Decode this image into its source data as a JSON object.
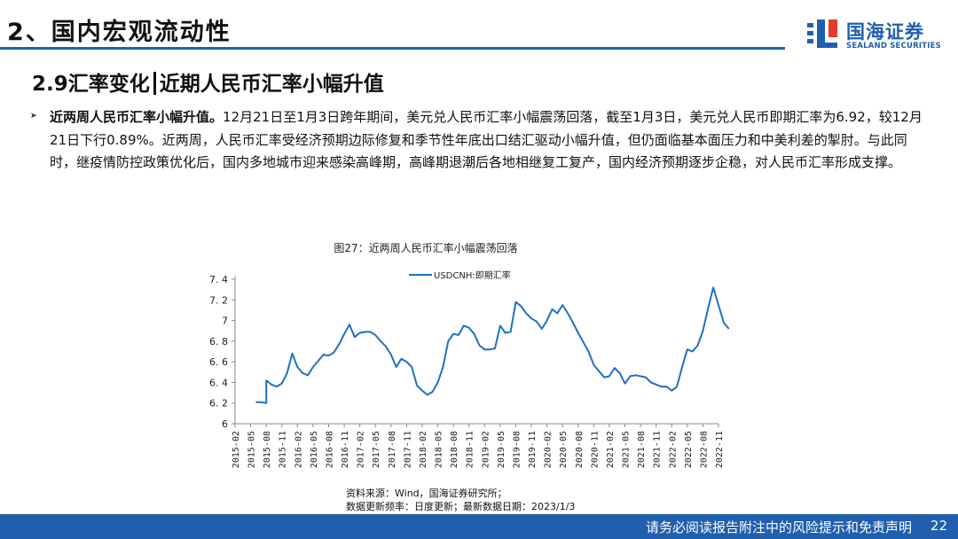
{
  "header": {
    "section_title": "2、国内宏观流动性",
    "logo_cn": "国海证券",
    "logo_en": "SEALAND SECURITIES"
  },
  "subheading": {
    "part1": "2.9汇率变化",
    "part2": "近期人民币汇率小幅升值"
  },
  "paragraph": {
    "lead": "近两周人民币汇率小幅升值。",
    "text": "12月21日至1月3日跨年期间，美元兑人民币汇率小幅震荡回落，截至1月3日，美元兑人民币即期汇率为6.92，较12月21日下行0.89%。近两周，人民币汇率受经济预期边际修复和季节性年底出口结汇驱动小幅升值，但仍面临基本面压力和中美利差的掣肘。与此同时，继疫情防控政策优化后，国内多地城市迎来感染高峰期，高峰期退潮后各地相继复工复产，国内经济预期逐步企稳，对人民币汇率形成支撑。"
  },
  "chart_data": {
    "type": "line",
    "title": "图27：近两周人民币汇率小幅震荡回落",
    "ylim": [
      6,
      7.4
    ],
    "yticks": [
      "6",
      "6.2",
      "6.4",
      "6.6",
      "6.8",
      "7",
      "7.2",
      "7.4"
    ],
    "x_ticks": [
      "2015-02",
      "2015-05",
      "2015-08",
      "2015-11",
      "2016-02",
      "2016-05",
      "2016-08",
      "2016-11",
      "2017-02",
      "2017-05",
      "2017-08",
      "2017-11",
      "2018-02",
      "2018-05",
      "2018-08",
      "2018-11",
      "2019-02",
      "2019-05",
      "2019-08",
      "2019-11",
      "2020-02",
      "2020-05",
      "2020-08",
      "2020-11",
      "2021-02",
      "2021-05",
      "2021-08",
      "2021-11",
      "2022-02",
      "2022-05",
      "2022-08",
      "2022-11"
    ],
    "x_start": "2015-02",
    "grid": false,
    "legend": "top",
    "series": [
      {
        "name": "USDCNH:即期汇率",
        "color": "#1f6fc4",
        "points": [
          [
            "2015-06",
            6.21
          ],
          [
            "2015-07",
            6.21
          ],
          [
            "2015-08",
            6.2
          ],
          [
            "2015-08",
            6.42
          ],
          [
            "2015-09",
            6.38
          ],
          [
            "2015-10",
            6.36
          ],
          [
            "2015-11",
            6.39
          ],
          [
            "2015-12",
            6.49
          ],
          [
            "2016-01",
            6.68
          ],
          [
            "2016-02",
            6.55
          ],
          [
            "2016-03",
            6.49
          ],
          [
            "2016-04",
            6.47
          ],
          [
            "2016-05",
            6.55
          ],
          [
            "2016-06",
            6.61
          ],
          [
            "2016-07",
            6.67
          ],
          [
            "2016-08",
            6.66
          ],
          [
            "2016-09",
            6.69
          ],
          [
            "2016-10",
            6.77
          ],
          [
            "2016-11",
            6.87
          ],
          [
            "2016-12",
            6.96
          ],
          [
            "2017-01",
            6.84
          ],
          [
            "2017-02",
            6.88
          ],
          [
            "2017-03",
            6.89
          ],
          [
            "2017-04",
            6.89
          ],
          [
            "2017-05",
            6.86
          ],
          [
            "2017-06",
            6.8
          ],
          [
            "2017-07",
            6.75
          ],
          [
            "2017-08",
            6.67
          ],
          [
            "2017-09",
            6.55
          ],
          [
            "2017-10",
            6.63
          ],
          [
            "2017-11",
            6.6
          ],
          [
            "2017-12",
            6.55
          ],
          [
            "2018-01",
            6.37
          ],
          [
            "2018-02",
            6.32
          ],
          [
            "2018-03",
            6.28
          ],
          [
            "2018-04",
            6.31
          ],
          [
            "2018-05",
            6.4
          ],
          [
            "2018-06",
            6.55
          ],
          [
            "2018-07",
            6.8
          ],
          [
            "2018-08",
            6.87
          ],
          [
            "2018-09",
            6.86
          ],
          [
            "2018-10",
            6.95
          ],
          [
            "2018-11",
            6.93
          ],
          [
            "2018-12",
            6.87
          ],
          [
            "2019-01",
            6.76
          ],
          [
            "2019-02",
            6.72
          ],
          [
            "2019-03",
            6.72
          ],
          [
            "2019-04",
            6.73
          ],
          [
            "2019-05",
            6.95
          ],
          [
            "2019-06",
            6.88
          ],
          [
            "2019-07",
            6.89
          ],
          [
            "2019-08",
            7.18
          ],
          [
            "2019-09",
            7.14
          ],
          [
            "2019-10",
            7.07
          ],
          [
            "2019-11",
            7.02
          ],
          [
            "2019-12",
            6.99
          ],
          [
            "2020-01",
            6.92
          ],
          [
            "2020-02",
            7.0
          ],
          [
            "2020-03",
            7.11
          ],
          [
            "2020-04",
            7.07
          ],
          [
            "2020-05",
            7.15
          ],
          [
            "2020-06",
            7.07
          ],
          [
            "2020-07",
            6.98
          ],
          [
            "2020-08",
            6.88
          ],
          [
            "2020-09",
            6.79
          ],
          [
            "2020-10",
            6.7
          ],
          [
            "2020-11",
            6.57
          ],
          [
            "2020-12",
            6.51
          ],
          [
            "2021-01",
            6.45
          ],
          [
            "2021-02",
            6.46
          ],
          [
            "2021-03",
            6.54
          ],
          [
            "2021-04",
            6.49
          ],
          [
            "2021-05",
            6.39
          ],
          [
            "2021-06",
            6.46
          ],
          [
            "2021-07",
            6.47
          ],
          [
            "2021-08",
            6.46
          ],
          [
            "2021-09",
            6.45
          ],
          [
            "2021-10",
            6.4
          ],
          [
            "2021-11",
            6.38
          ],
          [
            "2021-12",
            6.36
          ],
          [
            "2022-01",
            6.36
          ],
          [
            "2022-02",
            6.32
          ],
          [
            "2022-03",
            6.36
          ],
          [
            "2022-04",
            6.55
          ],
          [
            "2022-05",
            6.72
          ],
          [
            "2022-06",
            6.7
          ],
          [
            "2022-07",
            6.76
          ],
          [
            "2022-08",
            6.9
          ],
          [
            "2022-09",
            7.12
          ],
          [
            "2022-10",
            7.32
          ],
          [
            "2022-11",
            7.15
          ],
          [
            "2022-12",
            6.98
          ],
          [
            "2023-01",
            6.92
          ]
        ]
      }
    ]
  },
  "source": {
    "line1": "资料来源：Wind，国海证券研究所；",
    "line2": "数据更新频率：日度更新；最新数据日期：2023/1/3"
  },
  "footer": {
    "disclaimer": "请务必阅读报告附注中的风险提示和免责声明",
    "page": "22"
  }
}
